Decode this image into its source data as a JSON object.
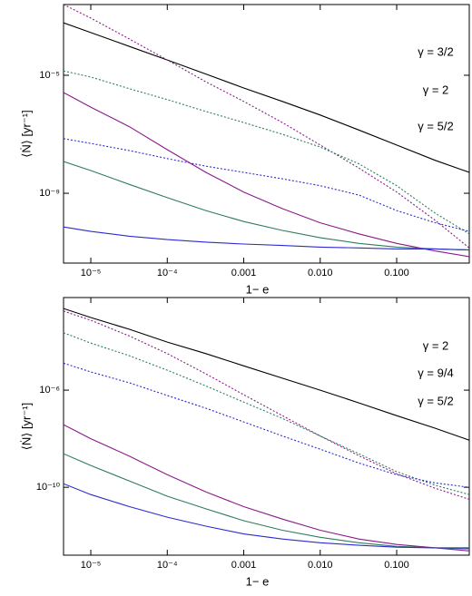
{
  "chart_data": [
    {
      "type": "line",
      "xscale": "log",
      "yscale": "log",
      "xlabel": "1− e",
      "ylabel": "⟨Ṅ⟩ [yr⁻¹]",
      "x": [
        4.4e-06,
        1e-05,
        3.2e-05,
        0.0001,
        0.00032,
        0.001,
        0.0032,
        0.01,
        0.032,
        0.1,
        0.32,
        0.89
      ],
      "xlim": [
        4.4e-06,
        0.89
      ],
      "ylim": [
        4.3e-12,
        0.0025
      ],
      "xticks": [
        {
          "value": 1e-05,
          "label": "10⁻⁵"
        },
        {
          "value": 0.0001,
          "label": "10⁻⁴"
        },
        0.001,
        {
          "value": 0.01,
          "label": "0.010"
        },
        {
          "value": 0.1,
          "label": "0.100"
        }
      ],
      "yticks": [
        {
          "value": 1e-05,
          "label": "10⁻⁵"
        },
        {
          "value": 1e-09,
          "label": "10⁻⁹"
        }
      ],
      "series": [
        {
          "color": "#000000",
          "dash": "solid",
          "values": [
            0.0006,
            0.00028,
            9.5e-05,
            3.3e-05,
            1.1e-05,
            3.7e-06,
            1.3e-06,
            4.5e-07,
            1.4e-07,
            4.3e-08,
            1.3e-08,
            5.1e-09
          ]
        },
        {
          "color": "#8b1a8b",
          "dash": "dotted",
          "values": [
            0.0025,
            0.00087,
            0.00017,
            3.3e-05,
            6e-06,
            1.3e-06,
            2.5e-07,
            4.3e-08,
            7.2e-09,
            1.1e-09,
            1.2e-10,
            1.4e-11
          ]
        },
        {
          "color": "#2e7d5b",
          "dash": "dotted",
          "values": [
            1.4e-05,
            8.7e-06,
            3.5e-06,
            1.5e-06,
            5.9e-07,
            2.5e-07,
            1e-07,
            3.7e-08,
            1e-08,
            1.8e-09,
            2.1e-10,
            4.2e-11
          ]
        },
        {
          "color": "#2b2bd0",
          "dash": "dotted",
          "values": [
            7.1e-08,
            4.9e-08,
            2.8e-08,
            1.5e-08,
            8.3e-09,
            5.1e-09,
            3.1e-09,
            1.8e-09,
            8.7e-10,
            2.6e-10,
            1e-10,
            5.1e-11
          ]
        },
        {
          "color": "#8b1a8b",
          "dash": "solid",
          "values": [
            2.6e-06,
            8.3e-07,
            1.8e-07,
            3e-08,
            5.1e-09,
            1.1e-09,
            3e-10,
            1e-10,
            4.2e-11,
            2e-11,
            1.1e-11,
            7.1e-12
          ]
        },
        {
          "color": "#2e7d5b",
          "dash": "solid",
          "values": [
            1.2e-08,
            5.9e-09,
            2e-09,
            7.1e-10,
            2.6e-10,
            1.1e-10,
            5.5e-11,
            3.1e-11,
            2e-11,
            1.5e-11,
            1.3e-11,
            1.2e-11
          ]
        },
        {
          "color": "#2b2bd0",
          "dash": "solid",
          "values": [
            7.2e-11,
            5.1e-11,
            3.5e-11,
            2.7e-11,
            2.2e-11,
            1.9e-11,
            1.7e-11,
            1.5e-11,
            1.4e-11,
            1.3e-11,
            1.3e-11,
            1.2e-11
          ]
        }
      ],
      "legend": [
        {
          "label": "γ = 3/2",
          "color": "#2b2bd0"
        },
        {
          "label": "γ = 2",
          "color": "#2e7d5b"
        },
        {
          "label": "γ = 5/2",
          "color": "#8b1a8b"
        }
      ]
    },
    {
      "type": "line",
      "xscale": "log",
      "yscale": "log",
      "xlabel": "1− e",
      "ylabel": "⟨Ṅ⟩ [yr⁻¹]",
      "x": [
        4.4e-06,
        1e-05,
        3.2e-05,
        0.0001,
        0.00032,
        0.001,
        0.0032,
        0.01,
        0.032,
        0.1,
        0.32,
        0.89
      ],
      "xlim": [
        4.4e-06,
        0.89
      ],
      "ylim": [
        1.6e-13,
        0.0065
      ],
      "xticks": [
        {
          "value": 1e-05,
          "label": "10⁻⁵"
        },
        {
          "value": 0.0001,
          "label": "10⁻⁴"
        },
        0.001,
        {
          "value": 0.01,
          "label": "0.010"
        },
        {
          "value": 0.1,
          "label": "0.100"
        }
      ],
      "yticks": [
        {
          "value": 1e-06,
          "label": "10⁻⁶"
        },
        {
          "value": 1e-10,
          "label": "10⁻¹⁰"
        }
      ],
      "series": [
        {
          "color": "#000000",
          "dash": "solid",
          "values": [
            0.0023,
            0.00098,
            0.00032,
            9.5e-05,
            3.2e-05,
            1e-05,
            3.1e-06,
            1e-06,
            3e-07,
            8.9e-08,
            2.7e-08,
            8.7e-09
          ]
        },
        {
          "color": "#8b1a8b",
          "dash": "dotted",
          "values": [
            0.0018,
            0.00076,
            0.00017,
            3.2e-05,
            4.7e-06,
            6.5e-07,
            8.9e-08,
            1.3e-08,
            2e-09,
            3.6e-10,
            9.1e-11,
            3.2e-11
          ]
        },
        {
          "color": "#2e7d5b",
          "dash": "dotted",
          "values": [
            0.00023,
            8.7e-05,
            2.6e-05,
            6.6e-06,
            1.5e-06,
            3.2e-07,
            6.9e-08,
            1.3e-08,
            2.4e-09,
            4.4e-10,
            1.2e-10,
            5e-11
          ]
        },
        {
          "color": "#2b2bd0",
          "dash": "dotted",
          "values": [
            1.3e-05,
            5.6e-06,
            2e-06,
            6e-07,
            1.8e-07,
            4.9e-08,
            1.3e-08,
            3.7e-09,
            1e-09,
            3.3e-10,
            1.5e-10,
            1e-10
          ]
        },
        {
          "color": "#8b1a8b",
          "dash": "solid",
          "values": [
            3.8e-08,
            1e-08,
            1.9e-09,
            3.3e-10,
            6.5e-11,
            1.6e-11,
            4.9e-12,
            1.7e-12,
            7.4e-13,
            4.4e-13,
            3.2e-13,
            2.4e-13
          ]
        },
        {
          "color": "#2e7d5b",
          "dash": "solid",
          "values": [
            2.4e-09,
            7.9e-10,
            1.8e-10,
            4.3e-11,
            1.3e-11,
            4.2e-12,
            1.7e-12,
            8.7e-13,
            5.2e-13,
            3.7e-13,
            3.2e-13,
            2.9e-13
          ]
        },
        {
          "color": "#2b2bd0",
          "dash": "solid",
          "values": [
            1.4e-10,
            5e-11,
            1.6e-11,
            5.9e-12,
            2.5e-12,
            1.2e-12,
            7.4e-13,
            5.2e-13,
            4.1e-13,
            3.4e-13,
            3.2e-13,
            3.2e-13
          ]
        }
      ],
      "legend": [
        {
          "label": "γ = 2",
          "color": "#2b2bd0"
        },
        {
          "label": "γ = 9/4",
          "color": "#2e7d5b"
        },
        {
          "label": "γ = 5/2",
          "color": "#8b1a8b"
        }
      ]
    }
  ]
}
